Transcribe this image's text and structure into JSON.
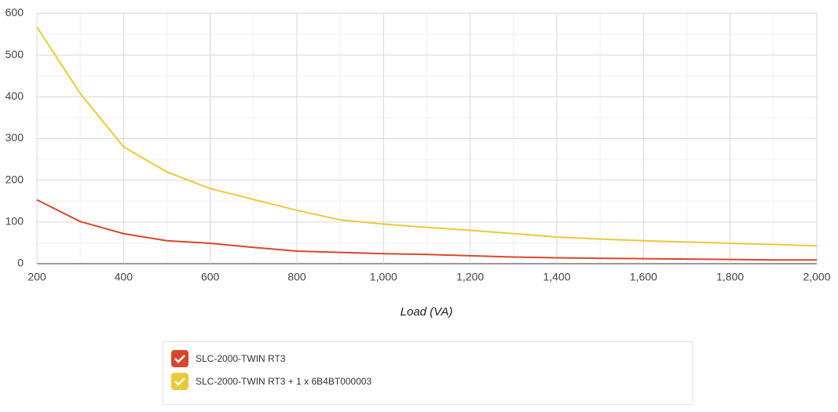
{
  "chart_data": {
    "type": "line",
    "x_label": "Load (VA)",
    "x": [
      200,
      300,
      400,
      500,
      600,
      700,
      800,
      900,
      1000,
      1100,
      1200,
      1300,
      1400,
      1500,
      1600,
      1700,
      1800,
      1900,
      2000
    ],
    "series": [
      {
        "name": "SLC-2000-TWIN RT3",
        "color": "#d9472b",
        "values": [
          153,
          101,
          72,
          55,
          49,
          39,
          30,
          27,
          24,
          22,
          19,
          16,
          14,
          13,
          12,
          11,
          10,
          9,
          9
        ]
      },
      {
        "name": "SLC-2000-TWIN RT3 + 1 x 6B4BT000003",
        "color": "#ecc93a",
        "values": [
          567,
          408,
          280,
          220,
          180,
          154,
          128,
          105,
          95,
          87,
          80,
          72,
          64,
          59,
          55,
          52,
          49,
          46,
          43
        ]
      }
    ],
    "xlim": [
      200,
      2000
    ],
    "ylim": [
      0,
      600
    ],
    "xticks": [
      200,
      400,
      600,
      800,
      {
        "value": 1000,
        "label": "1,000"
      },
      {
        "value": 1200,
        "label": "1,200"
      },
      {
        "value": 1400,
        "label": "1,400"
      },
      {
        "value": 1600,
        "label": "1,600"
      },
      {
        "value": 1800,
        "label": "1,800"
      },
      {
        "value": 2000,
        "label": "2,000"
      }
    ],
    "yticks": [
      0,
      100,
      200,
      300,
      400,
      500,
      600
    ],
    "xminorticks": [
      300,
      500,
      700,
      900,
      1100,
      1300,
      1500,
      1700,
      1900
    ],
    "yminorticks": [
      50,
      150,
      250,
      350,
      450,
      550
    ],
    "grid": true,
    "legend": "bottom"
  }
}
